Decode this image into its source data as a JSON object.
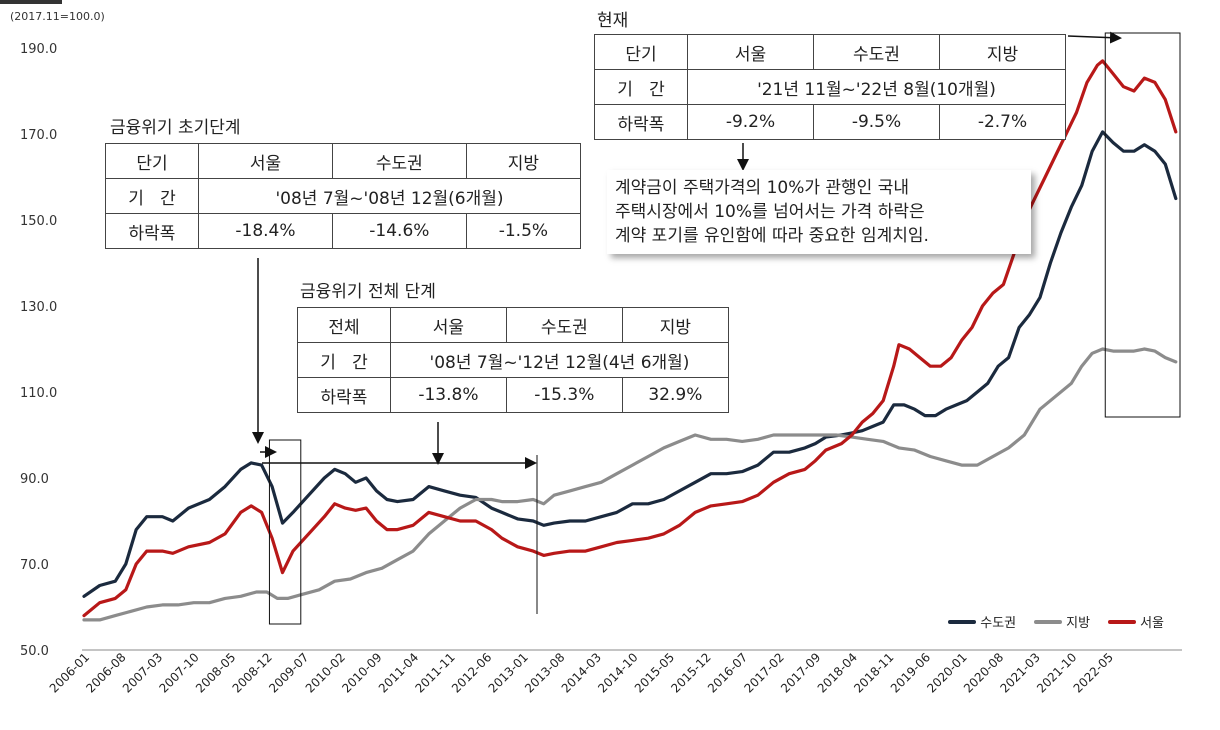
{
  "unit_label": "(2017.11=100.0)",
  "chart_data": {
    "type": "line",
    "ylim": [
      50,
      190
    ],
    "yticks": [
      "190.0",
      "170.0",
      "150.0",
      "130.0",
      "110.0",
      "90.0",
      "70.0",
      "50.0"
    ],
    "x_tick_labels": [
      "2006-01",
      "2006-08",
      "2007-03",
      "2007-10",
      "2008-05",
      "2008-12",
      "2009-07",
      "2010-02",
      "2010-09",
      "2011-04",
      "2011-11",
      "2012-06",
      "2013-01",
      "2013-08",
      "2014-03",
      "2014-10",
      "2015-05",
      "2015-12",
      "2016-07",
      "2017-02",
      "2017-09",
      "2018-04",
      "2018-11",
      "2019-06",
      "2020-01",
      "2020-08",
      "2021-03",
      "2021-10",
      "2022-05"
    ],
    "series": [
      {
        "name": "수도권",
        "color": "#1b2a3e",
        "points": [
          [
            0,
            62.5
          ],
          [
            3,
            65
          ],
          [
            6,
            66
          ],
          [
            8,
            70
          ],
          [
            10,
            78
          ],
          [
            12,
            81
          ],
          [
            15,
            81
          ],
          [
            17,
            80
          ],
          [
            20,
            83
          ],
          [
            24,
            85
          ],
          [
            27,
            88
          ],
          [
            30,
            92
          ],
          [
            32,
            93.5
          ],
          [
            34,
            93
          ],
          [
            36,
            88
          ],
          [
            38,
            79.5
          ],
          [
            40,
            82
          ],
          [
            43,
            86
          ],
          [
            46,
            90
          ],
          [
            48,
            92
          ],
          [
            50,
            91
          ],
          [
            52,
            89
          ],
          [
            54,
            90
          ],
          [
            56,
            87
          ],
          [
            58,
            85
          ],
          [
            60,
            84.5
          ],
          [
            63,
            85
          ],
          [
            66,
            88
          ],
          [
            69,
            87
          ],
          [
            72,
            86
          ],
          [
            75,
            85.5
          ],
          [
            78,
            83
          ],
          [
            80,
            82
          ],
          [
            83,
            80.5
          ],
          [
            86,
            80
          ],
          [
            88,
            79
          ],
          [
            90,
            79.5
          ],
          [
            93,
            80
          ],
          [
            96,
            80
          ],
          [
            99,
            81
          ],
          [
            102,
            82
          ],
          [
            105,
            84
          ],
          [
            108,
            84
          ],
          [
            111,
            85
          ],
          [
            114,
            87
          ],
          [
            117,
            89
          ],
          [
            120,
            91
          ],
          [
            123,
            91
          ],
          [
            126,
            91.5
          ],
          [
            129,
            93
          ],
          [
            132,
            96
          ],
          [
            135,
            96
          ],
          [
            138,
            97
          ],
          [
            140,
            98
          ],
          [
            142,
            99.5
          ],
          [
            145,
            100
          ],
          [
            147,
            100.5
          ],
          [
            149,
            101
          ],
          [
            151,
            102
          ],
          [
            153,
            103
          ],
          [
            155,
            107
          ],
          [
            157,
            107
          ],
          [
            159,
            106
          ],
          [
            161,
            104.5
          ],
          [
            163,
            104.5
          ],
          [
            165,
            106
          ],
          [
            167,
            107
          ],
          [
            169,
            108
          ],
          [
            171,
            110
          ],
          [
            173,
            112
          ],
          [
            175,
            116
          ],
          [
            177,
            118
          ],
          [
            179,
            125
          ],
          [
            181,
            128
          ],
          [
            183,
            132
          ],
          [
            185,
            140
          ],
          [
            187,
            147
          ],
          [
            189,
            153
          ],
          [
            191,
            158
          ],
          [
            193,
            166
          ],
          [
            195,
            170.5
          ],
          [
            197,
            168
          ],
          [
            199,
            166
          ],
          [
            201,
            166
          ],
          [
            203,
            167.5
          ],
          [
            205,
            166
          ],
          [
            207,
            163
          ],
          [
            209,
            155
          ]
        ]
      },
      {
        "name": "지방",
        "color": "#8c8c8c",
        "points": [
          [
            0,
            57
          ],
          [
            3,
            57
          ],
          [
            6,
            58
          ],
          [
            9,
            59
          ],
          [
            12,
            60
          ],
          [
            15,
            60.5
          ],
          [
            18,
            60.5
          ],
          [
            21,
            61
          ],
          [
            24,
            61
          ],
          [
            27,
            62
          ],
          [
            30,
            62.5
          ],
          [
            33,
            63.5
          ],
          [
            35,
            63.5
          ],
          [
            37,
            62
          ],
          [
            39,
            62
          ],
          [
            42,
            63
          ],
          [
            45,
            64
          ],
          [
            48,
            66
          ],
          [
            51,
            66.5
          ],
          [
            54,
            68
          ],
          [
            57,
            69
          ],
          [
            60,
            71
          ],
          [
            63,
            73
          ],
          [
            66,
            77
          ],
          [
            69,
            80
          ],
          [
            72,
            83
          ],
          [
            75,
            85
          ],
          [
            78,
            85
          ],
          [
            80,
            84.5
          ],
          [
            83,
            84.5
          ],
          [
            86,
            85
          ],
          [
            88,
            84
          ],
          [
            90,
            86
          ],
          [
            93,
            87
          ],
          [
            96,
            88
          ],
          [
            99,
            89
          ],
          [
            102,
            91
          ],
          [
            105,
            93
          ],
          [
            108,
            95
          ],
          [
            111,
            97
          ],
          [
            114,
            98.5
          ],
          [
            117,
            100
          ],
          [
            120,
            99
          ],
          [
            123,
            99
          ],
          [
            126,
            98.5
          ],
          [
            129,
            99
          ],
          [
            132,
            100
          ],
          [
            135,
            100
          ],
          [
            138,
            100
          ],
          [
            141,
            100
          ],
          [
            144,
            100
          ],
          [
            147,
            99.5
          ],
          [
            150,
            99
          ],
          [
            153,
            98.5
          ],
          [
            156,
            97
          ],
          [
            159,
            96.5
          ],
          [
            162,
            95
          ],
          [
            165,
            94
          ],
          [
            168,
            93
          ],
          [
            171,
            93
          ],
          [
            174,
            95
          ],
          [
            177,
            97
          ],
          [
            180,
            100
          ],
          [
            183,
            106
          ],
          [
            186,
            109
          ],
          [
            189,
            112
          ],
          [
            191,
            116
          ],
          [
            193,
            119
          ],
          [
            195,
            120
          ],
          [
            197,
            119.5
          ],
          [
            199,
            119.5
          ],
          [
            201,
            119.5
          ],
          [
            203,
            120
          ],
          [
            205,
            119.5
          ],
          [
            207,
            118
          ],
          [
            209,
            117
          ]
        ]
      },
      {
        "name": "서울",
        "color": "#b81818",
        "points": [
          [
            0,
            58
          ],
          [
            3,
            61
          ],
          [
            6,
            62
          ],
          [
            8,
            64
          ],
          [
            10,
            70
          ],
          [
            12,
            73
          ],
          [
            15,
            73
          ],
          [
            17,
            72.5
          ],
          [
            20,
            74
          ],
          [
            24,
            75
          ],
          [
            27,
            77
          ],
          [
            30,
            82
          ],
          [
            32,
            83.5
          ],
          [
            34,
            82
          ],
          [
            36,
            76
          ],
          [
            38,
            68
          ],
          [
            40,
            73
          ],
          [
            43,
            77
          ],
          [
            46,
            81
          ],
          [
            48,
            84
          ],
          [
            50,
            83
          ],
          [
            52,
            82.5
          ],
          [
            54,
            83
          ],
          [
            56,
            80
          ],
          [
            58,
            78
          ],
          [
            60,
            78
          ],
          [
            63,
            79
          ],
          [
            66,
            82
          ],
          [
            69,
            81
          ],
          [
            72,
            80
          ],
          [
            75,
            80
          ],
          [
            78,
            78
          ],
          [
            80,
            76
          ],
          [
            83,
            74
          ],
          [
            86,
            73
          ],
          [
            88,
            72
          ],
          [
            90,
            72.5
          ],
          [
            93,
            73
          ],
          [
            96,
            73
          ],
          [
            99,
            74
          ],
          [
            102,
            75
          ],
          [
            105,
            75.5
          ],
          [
            108,
            76
          ],
          [
            111,
            77
          ],
          [
            114,
            79
          ],
          [
            117,
            82
          ],
          [
            120,
            83.5
          ],
          [
            123,
            84
          ],
          [
            126,
            84.5
          ],
          [
            129,
            86
          ],
          [
            132,
            89
          ],
          [
            135,
            91
          ],
          [
            138,
            92
          ],
          [
            140,
            94
          ],
          [
            142,
            96.5
          ],
          [
            145,
            98
          ],
          [
            147,
            100
          ],
          [
            149,
            103
          ],
          [
            151,
            105
          ],
          [
            153,
            108
          ],
          [
            155,
            116
          ],
          [
            156,
            121
          ],
          [
            158,
            120
          ],
          [
            160,
            118
          ],
          [
            162,
            116
          ],
          [
            164,
            116
          ],
          [
            166,
            118
          ],
          [
            168,
            122
          ],
          [
            170,
            125
          ],
          [
            172,
            130
          ],
          [
            174,
            133
          ],
          [
            176,
            135
          ],
          [
            178,
            142
          ],
          [
            180,
            150
          ],
          [
            182,
            155
          ],
          [
            184,
            160
          ],
          [
            186,
            165
          ],
          [
            188,
            170
          ],
          [
            190,
            175
          ],
          [
            192,
            182
          ],
          [
            194,
            186
          ],
          [
            195,
            187
          ],
          [
            197,
            184
          ],
          [
            199,
            181
          ],
          [
            201,
            180
          ],
          [
            203,
            183
          ],
          [
            205,
            182
          ],
          [
            207,
            178
          ],
          [
            209,
            170.5
          ]
        ]
      }
    ],
    "periods": [
      [
        35.5,
        41.5
      ],
      [
        195.5,
        210
      ]
    ]
  },
  "legend": [
    "수도권",
    "지방",
    "서울"
  ],
  "box1": {
    "caption": "금융위기 초기단계",
    "row1": [
      "단기",
      "서울",
      "수도권",
      "지방"
    ],
    "row2": [
      "기   간",
      "'08년 7월~'08년 12월(6개월)"
    ],
    "row3": [
      "하락폭",
      "-18.4%",
      "-14.6%",
      "-1.5%"
    ]
  },
  "box2": {
    "caption": "금융위기 전체 단계",
    "row1": [
      "전체",
      "서울",
      "수도권",
      "지방"
    ],
    "row2": [
      "기   간",
      "'08년 7월~'12년 12월(4년 6개월)"
    ],
    "row3": [
      "하락폭",
      "-13.8%",
      "-15.3%",
      "32.9%"
    ]
  },
  "box3": {
    "caption": "현재",
    "row1": [
      "단기",
      "서울",
      "수도권",
      "지방"
    ],
    "row2": [
      "기   간",
      "'21년 11월~'22년 8월(10개월)"
    ],
    "row3": [
      "하락폭",
      "-9.2%",
      "-9.5%",
      "-2.7%"
    ]
  },
  "note": [
    "계약금이 주택가격의 10%가 관행인 국내",
    "주택시장에서 10%를 넘어서는 가격 하락은",
    "계약 포기를 유인함에 따라 중요한 임계치임."
  ]
}
